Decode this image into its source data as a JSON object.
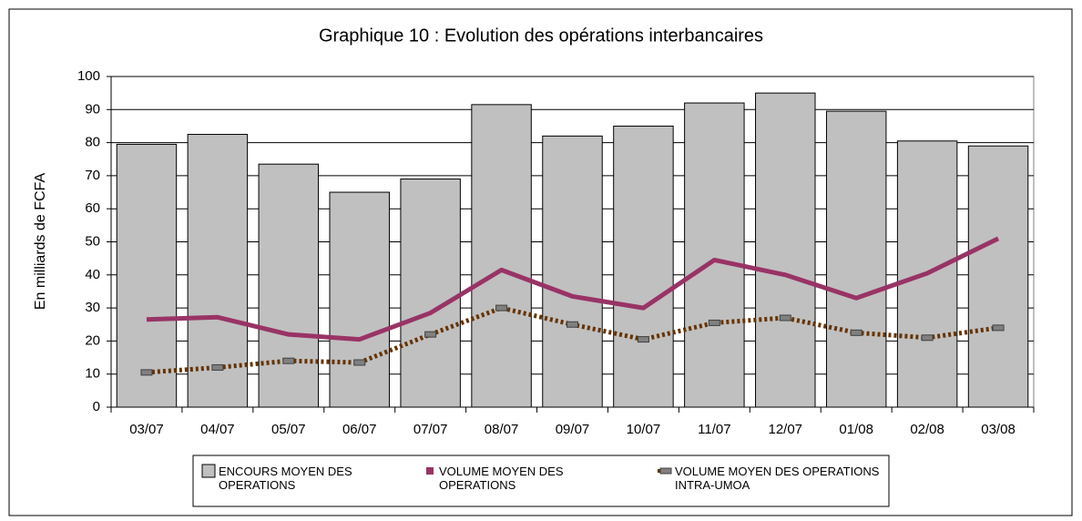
{
  "chart_data": {
    "type": "bar",
    "title": "Graphique 10 : Evolution des opérations interbancaires",
    "ylabel": "En milliards de FCFA",
    "categories": [
      "03/07",
      "04/07",
      "05/07",
      "06/07",
      "07/07",
      "08/07",
      "09/07",
      "10/07",
      "11/07",
      "12/07",
      "01/08",
      "02/08",
      "03/08"
    ],
    "series": [
      {
        "name": "ENCOURS MOYEN DES OPERATIONS",
        "type": "bar",
        "color": "#c0c0c0",
        "values": [
          79.5,
          82.5,
          73.5,
          65,
          69,
          91.5,
          82,
          85,
          92,
          95,
          89.5,
          80.5,
          79
        ]
      },
      {
        "name": "VOLUME MOYEN DES OPERATIONS",
        "type": "line",
        "color": "#993366",
        "values": [
          26.5,
          27.2,
          22,
          20.5,
          28.5,
          41.5,
          33.5,
          30,
          44.5,
          40,
          33,
          40.5,
          51
        ]
      },
      {
        "name": "VOLUME MOYEN DES OPERATIONS INTRA-UMOA",
        "type": "line",
        "color": "#663300",
        "dash": true,
        "values": [
          10.5,
          12,
          14,
          13.5,
          22,
          30,
          25,
          20.5,
          25.5,
          27,
          22.5,
          21,
          24
        ]
      }
    ],
    "ylim": [
      0,
      100
    ],
    "yticks": [
      0,
      10,
      20,
      30,
      40,
      50,
      60,
      70,
      80,
      90,
      100
    ],
    "grid": true
  }
}
